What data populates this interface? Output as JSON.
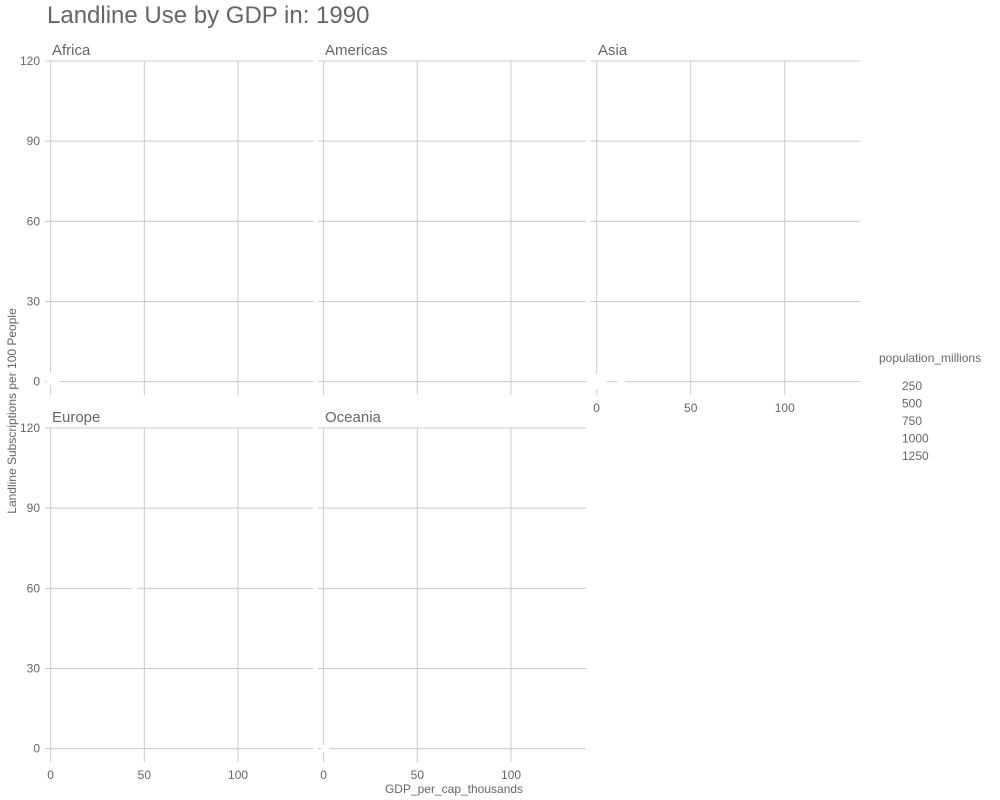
{
  "chart_data": {
    "type": "scatter",
    "title": "Landline Use by GDP in: 1990",
    "xlabel": "GDP_per_cap_thousands",
    "ylabel": "Landline Subscriptions per 100 People",
    "xlim": [
      -3,
      140
    ],
    "ylim": [
      -5,
      120
    ],
    "x_ticks": [
      0,
      50,
      100
    ],
    "y_ticks": [
      0,
      30,
      60,
      90,
      120
    ],
    "grid": true,
    "colors": {
      "grid": "#cccccc",
      "text": "#666666",
      "point": "#ffffff"
    },
    "panels": [
      {
        "name": "Africa",
        "points": [
          {
            "x": 1,
            "y": 1,
            "size": 50
          },
          {
            "x": 2,
            "y": 0,
            "size": 30
          }
        ]
      },
      {
        "name": "Americas",
        "points": []
      },
      {
        "name": "Asia",
        "points": [
          {
            "x": 1,
            "y": 0,
            "size": 80
          },
          {
            "x": 13,
            "y": 0.5,
            "size": 20
          }
        ]
      },
      {
        "name": "Europe",
        "points": [
          {
            "x": 45,
            "y": 60,
            "size": 10
          }
        ]
      },
      {
        "name": "Oceania",
        "points": [
          {
            "x": 1,
            "y": 0,
            "size": 20
          }
        ]
      }
    ],
    "legend": {
      "title": "population_millions",
      "placement": "right",
      "labels": [
        "250",
        "500",
        "750",
        "1000",
        "1250"
      ]
    }
  }
}
